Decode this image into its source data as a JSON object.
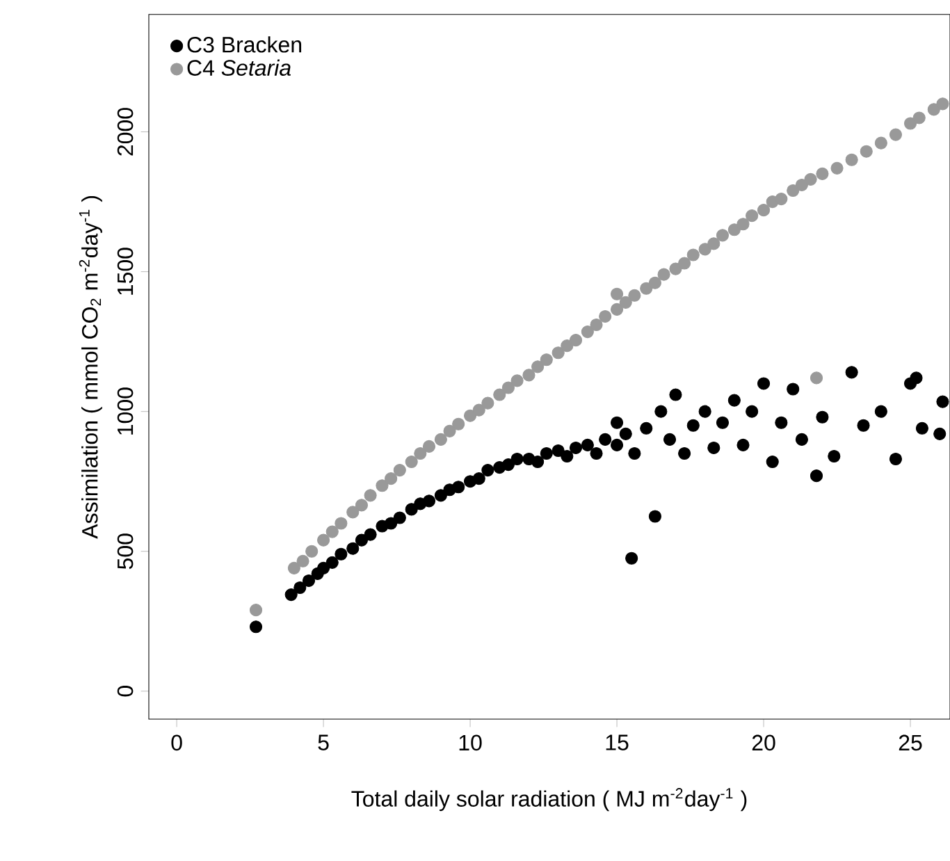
{
  "chart_data": {
    "type": "scatter",
    "xlabel": "Total daily solar radiation ( MJ m$^{-2}$day$^{-1}$ )",
    "ylabel": "Assimilation ( mmol CO$_{2}$ m$^{-2}$day$^{-1}$ )",
    "xlim": [
      -0.95,
      26.35
    ],
    "ylim": [
      -100,
      2420
    ],
    "xticks": [
      0,
      5,
      10,
      15,
      20,
      25
    ],
    "yticks": [
      0,
      500,
      1000,
      1500,
      2000
    ],
    "legend": "top left",
    "grid": false,
    "series": [
      {
        "name": "C3 Bracken",
        "color": "#000000",
        "x": [
          2.7,
          3.9,
          4.2,
          4.5,
          4.8,
          5.0,
          5.3,
          5.6,
          6.0,
          6.3,
          6.6,
          7.0,
          7.3,
          7.6,
          8.0,
          8.3,
          8.6,
          9.0,
          9.3,
          9.6,
          10.0,
          10.3,
          10.6,
          11.0,
          11.3,
          11.6,
          12.0,
          12.3,
          12.6,
          13.0,
          13.3,
          13.6,
          14.0,
          14.3,
          14.6,
          15.0,
          15.0,
          15.3,
          15.5,
          15.6,
          16.0,
          16.3,
          16.5,
          16.8,
          17.0,
          17.3,
          17.6,
          18.0,
          18.3,
          18.6,
          19.0,
          19.3,
          19.6,
          20.0,
          20.3,
          20.6,
          21.0,
          21.3,
          21.8,
          22.0,
          22.4,
          23.0,
          23.4,
          24.0,
          24.5,
          25.0,
          25.2,
          25.4,
          26.0,
          26.1
        ],
        "values": [
          230,
          345,
          370,
          395,
          420,
          440,
          460,
          490,
          510,
          540,
          560,
          590,
          600,
          620,
          650,
          670,
          680,
          700,
          720,
          730,
          750,
          760,
          790,
          800,
          810,
          830,
          830,
          820,
          850,
          860,
          840,
          870,
          880,
          850,
          900,
          960,
          880,
          920,
          475,
          850,
          940,
          625,
          1000,
          900,
          1060,
          850,
          950,
          1000,
          870,
          960,
          1040,
          880,
          1000,
          1100,
          820,
          960,
          1080,
          900,
          770,
          980,
          840,
          1140,
          950,
          1000,
          830,
          1100,
          1120,
          940,
          920,
          1035
        ]
      },
      {
        "name": "C4 *Setaria*",
        "color": "#999999",
        "x": [
          2.7,
          4.0,
          4.3,
          4.6,
          5.0,
          5.3,
          5.6,
          6.0,
          6.3,
          6.6,
          7.0,
          7.3,
          7.6,
          8.0,
          8.3,
          8.6,
          9.0,
          9.3,
          9.6,
          10.0,
          10.3,
          10.6,
          11.0,
          11.3,
          11.6,
          12.0,
          12.3,
          12.6,
          13.0,
          13.3,
          13.6,
          14.0,
          14.3,
          14.6,
          15.0,
          15.0,
          15.3,
          15.6,
          16.0,
          16.3,
          16.6,
          17.0,
          17.3,
          17.6,
          18.0,
          18.3,
          18.6,
          19.0,
          19.3,
          19.6,
          20.0,
          20.3,
          20.6,
          21.0,
          21.3,
          21.6,
          21.8,
          22.0,
          22.5,
          23.0,
          23.5,
          24.0,
          24.5,
          25.0,
          25.3,
          25.8,
          26.1
        ],
        "values": [
          290,
          440,
          465,
          500,
          540,
          570,
          600,
          640,
          665,
          700,
          735,
          760,
          790,
          820,
          850,
          875,
          900,
          930,
          955,
          985,
          1005,
          1030,
          1060,
          1085,
          1110,
          1130,
          1160,
          1185,
          1210,
          1235,
          1255,
          1285,
          1310,
          1340,
          1365,
          1420,
          1390,
          1415,
          1440,
          1460,
          1490,
          1510,
          1530,
          1560,
          1580,
          1600,
          1630,
          1650,
          1670,
          1700,
          1720,
          1750,
          1760,
          1790,
          1810,
          1830,
          1120,
          1850,
          1870,
          1900,
          1930,
          1960,
          1990,
          2030,
          2050,
          2080,
          2100
        ]
      }
    ]
  }
}
